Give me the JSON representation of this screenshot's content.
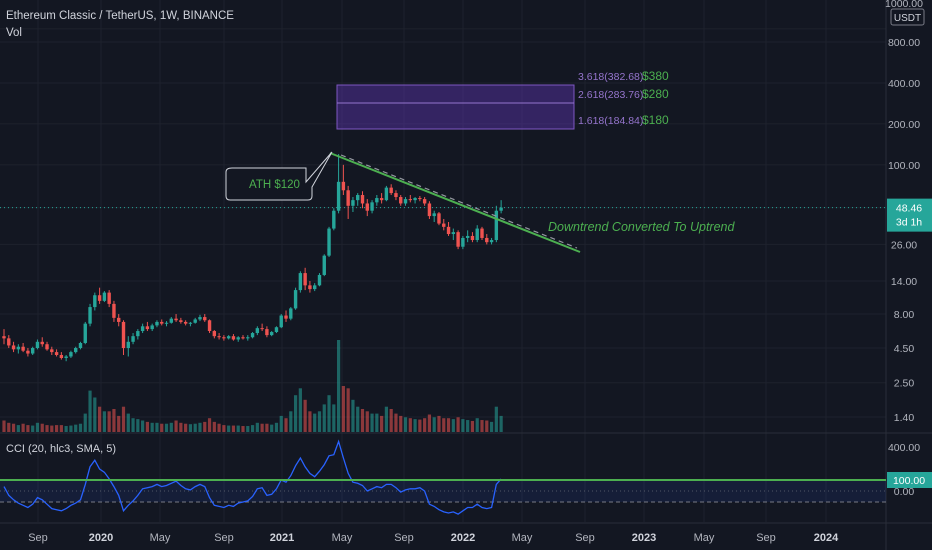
{
  "header": {
    "symbol": "Ethereum Classic / TetherUS, 1W, BINANCE",
    "volume_label": "Vol"
  },
  "indicator": {
    "label": "CCI (20, hlc3, SMA, 5)"
  },
  "price_axis": {
    "unit": "USDT",
    "ticks": [
      "1000.00",
      "800.00",
      "400.00",
      "200.00",
      "100.00",
      "48.46",
      "26.00",
      "14.00",
      "8.00",
      "4.50",
      "2.50",
      "1.40"
    ],
    "top_tick": "1000.00",
    "current_price": "48.46",
    "countdown": "3d 1h",
    "current_color": "#26a69a"
  },
  "cci_axis": {
    "ticks": [
      "400.00",
      "0.00"
    ],
    "highlight": "100.00",
    "highlight_color": "#26a69a"
  },
  "time_axis": [
    "Sep",
    "2020",
    "May",
    "Sep",
    "2021",
    "May",
    "Sep",
    "2022",
    "May",
    "Sep",
    "2023",
    "May",
    "Sep",
    "2024"
  ],
  "annotations": {
    "ath": "ATH $120",
    "trend": "Downtrend Converted To Uptrend",
    "fib_levels": [
      {
        "ratio": "3.618(382.68)",
        "target": "$380"
      },
      {
        "ratio": "2.618(283.76)",
        "target": "$280"
      },
      {
        "ratio": "1.618(184.84)",
        "target": "$180"
      }
    ]
  },
  "colors": {
    "background": "#131722",
    "up": "#26a69a",
    "down": "#ef5350",
    "trendline": "#4caf50",
    "fib": "#7e57c2",
    "cci_line": "#2962ff"
  },
  "chart_data": {
    "type": "candlestick",
    "scale": "log",
    "timeframe": "1W",
    "exchange": "BINANCE",
    "ylim": [
      1.2,
      1100
    ],
    "time_range": [
      "2019-08",
      "2024-06"
    ],
    "ath": 120,
    "last_price": 48.46,
    "ohlc": [
      [
        5.5,
        6.2,
        4.8,
        5.3
      ],
      [
        5.3,
        5.6,
        4.5,
        4.7
      ],
      [
        4.7,
        5.0,
        4.2,
        4.4
      ],
      [
        4.4,
        4.8,
        4.1,
        4.6
      ],
      [
        4.6,
        4.9,
        4.2,
        4.3
      ],
      [
        4.3,
        4.5,
        3.9,
        4.1
      ],
      [
        4.1,
        4.6,
        4.0,
        4.5
      ],
      [
        4.5,
        5.2,
        4.4,
        5.0
      ],
      [
        5.0,
        5.4,
        4.6,
        4.8
      ],
      [
        4.8,
        5.0,
        4.3,
        4.4
      ],
      [
        4.4,
        4.6,
        4.0,
        4.2
      ],
      [
        4.2,
        4.4,
        3.9,
        4.0
      ],
      [
        4.0,
        4.2,
        3.7,
        3.8
      ],
      [
        3.8,
        4.0,
        3.6,
        3.9
      ],
      [
        3.9,
        4.3,
        3.8,
        4.2
      ],
      [
        4.2,
        4.6,
        4.1,
        4.5
      ],
      [
        4.5,
        5.0,
        4.4,
        4.9
      ],
      [
        4.9,
        7.0,
        4.8,
        6.8
      ],
      [
        6.8,
        9.5,
        6.5,
        9.0
      ],
      [
        9.0,
        11.5,
        8.5,
        11.0
      ],
      [
        11.0,
        12.5,
        9.5,
        10.0
      ],
      [
        10.0,
        11.8,
        9.8,
        11.5
      ],
      [
        11.5,
        12.0,
        9.0,
        9.5
      ],
      [
        9.5,
        10.0,
        7.0,
        7.5
      ],
      [
        7.5,
        8.0,
        6.5,
        7.0
      ],
      [
        7.0,
        7.2,
        4.0,
        4.5
      ],
      [
        4.5,
        5.5,
        3.9,
        5.0
      ],
      [
        5.0,
        5.8,
        4.8,
        5.5
      ],
      [
        5.5,
        6.2,
        5.2,
        6.0
      ],
      [
        6.0,
        6.8,
        5.8,
        6.5
      ],
      [
        6.5,
        7.0,
        6.0,
        6.2
      ],
      [
        6.2,
        6.8,
        6.0,
        6.6
      ],
      [
        6.6,
        7.2,
        6.4,
        7.0
      ],
      [
        7.0,
        7.3,
        6.6,
        6.8
      ],
      [
        6.8,
        7.1,
        6.5,
        6.9
      ],
      [
        6.9,
        7.6,
        6.8,
        7.4
      ],
      [
        7.4,
        8.0,
        7.0,
        7.2
      ],
      [
        7.2,
        7.5,
        6.8,
        7.0
      ],
      [
        7.0,
        7.2,
        6.6,
        6.8
      ],
      [
        6.8,
        7.0,
        6.5,
        6.9
      ],
      [
        6.9,
        7.5,
        6.8,
        7.3
      ],
      [
        7.3,
        7.9,
        7.1,
        7.6
      ],
      [
        7.6,
        8.0,
        7.0,
        7.2
      ],
      [
        7.2,
        7.3,
        5.8,
        6.0
      ],
      [
        6.0,
        6.1,
        5.3,
        5.5
      ],
      [
        5.5,
        5.8,
        5.2,
        5.4
      ],
      [
        5.4,
        5.6,
        5.1,
        5.3
      ],
      [
        5.3,
        5.6,
        5.2,
        5.5
      ],
      [
        5.5,
        5.7,
        5.1,
        5.2
      ],
      [
        5.2,
        5.5,
        5.0,
        5.4
      ],
      [
        5.4,
        5.6,
        5.2,
        5.3
      ],
      [
        5.3,
        5.6,
        5.1,
        5.4
      ],
      [
        5.4,
        5.9,
        5.3,
        5.8
      ],
      [
        5.8,
        6.5,
        5.6,
        6.3
      ],
      [
        6.3,
        6.8,
        6.0,
        6.2
      ],
      [
        6.2,
        6.5,
        5.4,
        5.6
      ],
      [
        5.6,
        6.0,
        5.5,
        5.9
      ],
      [
        5.9,
        6.5,
        5.8,
        6.4
      ],
      [
        6.4,
        8.0,
        6.3,
        7.8
      ],
      [
        7.8,
        8.5,
        7.0,
        7.4
      ],
      [
        7.4,
        9.0,
        7.2,
        8.8
      ],
      [
        8.8,
        12.5,
        8.6,
        12.0
      ],
      [
        12.0,
        16.5,
        11.5,
        16.0
      ],
      [
        16.0,
        17.5,
        12.0,
        13.0
      ],
      [
        13.0,
        14.0,
        11.5,
        12.2
      ],
      [
        12.2,
        13.5,
        11.8,
        13.0
      ],
      [
        13.0,
        16.0,
        12.8,
        15.5
      ],
      [
        15.5,
        22.0,
        15.2,
        21.5
      ],
      [
        21.5,
        35.0,
        21.0,
        34.0
      ],
      [
        34.0,
        48.0,
        33.0,
        46.0
      ],
      [
        46.0,
        120.0,
        44.0,
        75.0
      ],
      [
        75.0,
        100.0,
        60.0,
        65.0
      ],
      [
        65.0,
        70.0,
        40.0,
        50.0
      ],
      [
        50.0,
        58.0,
        45.0,
        55.0
      ],
      [
        55.0,
        62.0,
        50.0,
        60.0
      ],
      [
        60.0,
        64.0,
        48.0,
        52.0
      ],
      [
        52.0,
        56.0,
        42.0,
        46.0
      ],
      [
        46.0,
        55.0,
        44.0,
        53.0
      ],
      [
        53.0,
        60.0,
        50.0,
        57.0
      ],
      [
        57.0,
        62.0,
        52.0,
        55.0
      ],
      [
        55.0,
        70.0,
        54.0,
        68.0
      ],
      [
        68.0,
        72.0,
        60.0,
        62.0
      ],
      [
        62.0,
        65.0,
        55.0,
        58.0
      ],
      [
        58.0,
        60.0,
        50.0,
        52.0
      ],
      [
        52.0,
        58.0,
        50.0,
        56.0
      ],
      [
        56.0,
        60.0,
        53.0,
        55.0
      ],
      [
        55.0,
        58.0,
        52.0,
        57.0
      ],
      [
        57.0,
        59.0,
        54.0,
        56.0
      ],
      [
        56.0,
        58.0,
        50.0,
        52.0
      ],
      [
        52.0,
        54.0,
        40.0,
        42.0
      ],
      [
        42.0,
        46.0,
        38.0,
        44.0
      ],
      [
        44.0,
        45.0,
        36.0,
        37.0
      ],
      [
        37.0,
        40.0,
        33.0,
        35.0
      ],
      [
        35.0,
        38.0,
        30.0,
        31.0
      ],
      [
        31.0,
        34.0,
        28.0,
        32.0
      ],
      [
        32.0,
        33.0,
        24.0,
        25.0
      ],
      [
        25.0,
        30.0,
        24.0,
        29.0
      ],
      [
        29.0,
        33.0,
        27.0,
        30.0
      ],
      [
        30.0,
        32.0,
        27.0,
        28.0
      ],
      [
        28.0,
        36.0,
        27.0,
        34.0
      ],
      [
        34.0,
        35.0,
        28.0,
        29.0
      ],
      [
        29.0,
        31.0,
        26.0,
        27.0
      ],
      [
        27.0,
        29.0,
        26.0,
        28.0
      ],
      [
        28.0,
        50.0,
        27.0,
        46.0
      ],
      [
        46.0,
        55.0,
        44.0,
        48.46
      ]
    ],
    "volume_scale": "relative",
    "volume": [
      0.25,
      0.2,
      0.18,
      0.15,
      0.18,
      0.15,
      0.14,
      0.2,
      0.18,
      0.15,
      0.14,
      0.15,
      0.15,
      0.13,
      0.14,
      0.16,
      0.18,
      0.4,
      0.9,
      0.75,
      0.55,
      0.45,
      0.45,
      0.5,
      0.35,
      0.55,
      0.4,
      0.3,
      0.28,
      0.25,
      0.22,
      0.2,
      0.2,
      0.18,
      0.18,
      0.2,
      0.25,
      0.2,
      0.18,
      0.17,
      0.18,
      0.2,
      0.22,
      0.3,
      0.22,
      0.18,
      0.15,
      0.14,
      0.14,
      0.14,
      0.13,
      0.13,
      0.15,
      0.2,
      0.18,
      0.18,
      0.16,
      0.2,
      0.35,
      0.3,
      0.45,
      0.8,
      0.95,
      0.7,
      0.45,
      0.4,
      0.45,
      0.6,
      0.8,
      0.6,
      2.0,
      1.0,
      0.95,
      0.7,
      0.55,
      0.5,
      0.45,
      0.4,
      0.4,
      0.35,
      0.55,
      0.5,
      0.4,
      0.35,
      0.32,
      0.3,
      0.28,
      0.27,
      0.3,
      0.38,
      0.32,
      0.35,
      0.3,
      0.3,
      0.28,
      0.32,
      0.28,
      0.26,
      0.24,
      0.3,
      0.26,
      0.25,
      0.22,
      0.55,
      0.35
    ],
    "cci": [
      40,
      -40,
      -80,
      -110,
      -130,
      -150,
      -120,
      -60,
      -80,
      -120,
      -160,
      -170,
      -180,
      -160,
      -130,
      -110,
      -80,
      60,
      220,
      280,
      200,
      170,
      110,
      40,
      -40,
      -180,
      -130,
      -90,
      -40,
      20,
      30,
      40,
      60,
      40,
      50,
      70,
      90,
      50,
      20,
      10,
      40,
      60,
      40,
      -60,
      -130,
      -140,
      -150,
      -130,
      -140,
      -110,
      -100,
      -90,
      -50,
      20,
      30,
      -40,
      -30,
      20,
      100,
      80,
      140,
      230,
      300,
      220,
      160,
      130,
      180,
      240,
      320,
      330,
      450,
      300,
      160,
      80,
      70,
      50,
      0,
      20,
      40,
      30,
      60,
      60,
      30,
      -10,
      10,
      20,
      20,
      30,
      0,
      -120,
      -140,
      -170,
      -190,
      -200,
      -190,
      -210,
      -180,
      -150,
      -150,
      -120,
      -150,
      -160,
      -150,
      60,
      110
    ],
    "cci_ylim": [
      -350,
      520
    ],
    "cci_levels": [
      100,
      -100
    ],
    "fibonacci": [
      {
        "ratio": 1.618,
        "price": 184.84,
        "target": 180
      },
      {
        "ratio": 2.618,
        "price": 283.76,
        "target": 280
      },
      {
        "ratio": 3.618,
        "price": 382.68,
        "target": 380
      }
    ]
  }
}
